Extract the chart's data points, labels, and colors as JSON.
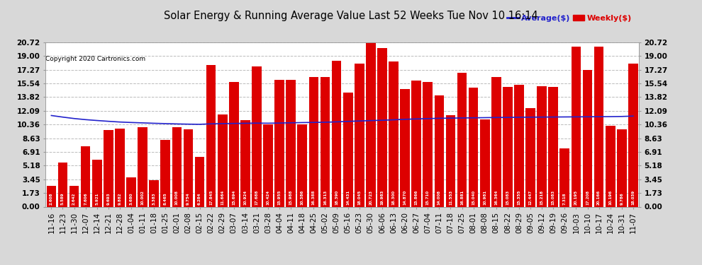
{
  "title": "Solar Energy & Running Average Value Last 52 Weeks Tue Nov 10 16:14",
  "copyright": "Copyright 2020 Cartronics.com",
  "bar_color": "#dd0000",
  "line_color": "#2222cc",
  "background_color": "#d8d8d8",
  "plot_bg_color": "#ffffff",
  "grid_color": "#bbbbbb",
  "yticks": [
    0.0,
    1.73,
    3.45,
    5.18,
    6.91,
    8.63,
    10.36,
    12.09,
    13.82,
    15.54,
    17.27,
    19.0,
    20.72
  ],
  "ylim": [
    0.0,
    20.72
  ],
  "legend_avg": "Average($)",
  "legend_weekly": "Weekly($)",
  "categories": [
    "11-16",
    "11-23",
    "11-30",
    "12-07",
    "12-14",
    "12-21",
    "12-28",
    "01-04",
    "01-11",
    "01-18",
    "01-25",
    "02-01",
    "02-08",
    "02-15",
    "02-22",
    "02-29",
    "03-07",
    "03-14",
    "03-21",
    "03-28",
    "04-04",
    "04-11",
    "04-18",
    "04-25",
    "05-02",
    "05-09",
    "05-16",
    "05-23",
    "05-30",
    "06-06",
    "06-13",
    "06-20",
    "06-27",
    "07-04",
    "07-11",
    "07-18",
    "07-25",
    "08-01",
    "08-08",
    "08-15",
    "08-22",
    "08-29",
    "09-05",
    "09-12",
    "09-19",
    "09-26",
    "10-03",
    "10-10",
    "10-17",
    "10-24",
    "10-31",
    "11-07"
  ],
  "weekly_values": [
    2.608,
    5.589,
    2.642,
    7.606,
    5.921,
    9.693,
    9.882,
    3.68,
    10.002,
    3.383,
    8.465,
    10.008,
    9.754,
    6.284,
    17.845,
    11.664,
    15.694,
    10.924,
    17.688,
    10.424,
    15.955,
    15.988,
    10.386,
    16.388,
    16.313,
    18.39,
    14.431,
    18.045,
    20.723,
    19.983,
    18.3,
    14.87,
    15.866,
    15.71,
    14.008,
    11.553,
    16.881,
    15.04,
    10.981,
    16.364,
    15.083,
    15.355,
    12.447,
    15.218,
    15.083,
    7.318,
    20.195,
    17.208,
    20.166,
    10.196,
    9.786,
    18.039
  ],
  "avg_values": [
    11.5,
    11.3,
    11.12,
    10.98,
    10.87,
    10.77,
    10.68,
    10.62,
    10.57,
    10.52,
    10.48,
    10.44,
    10.41,
    10.39,
    10.45,
    10.48,
    10.5,
    10.52,
    10.54,
    10.53,
    10.55,
    10.58,
    10.61,
    10.63,
    10.65,
    10.7,
    10.76,
    10.81,
    10.86,
    10.9,
    10.96,
    11.02,
    11.07,
    11.11,
    11.15,
    11.17,
    11.19,
    11.21,
    11.23,
    11.25,
    11.26,
    11.28,
    11.29,
    11.3,
    11.31,
    11.32,
    11.33,
    11.34,
    11.35,
    11.36,
    11.38,
    11.43
  ]
}
